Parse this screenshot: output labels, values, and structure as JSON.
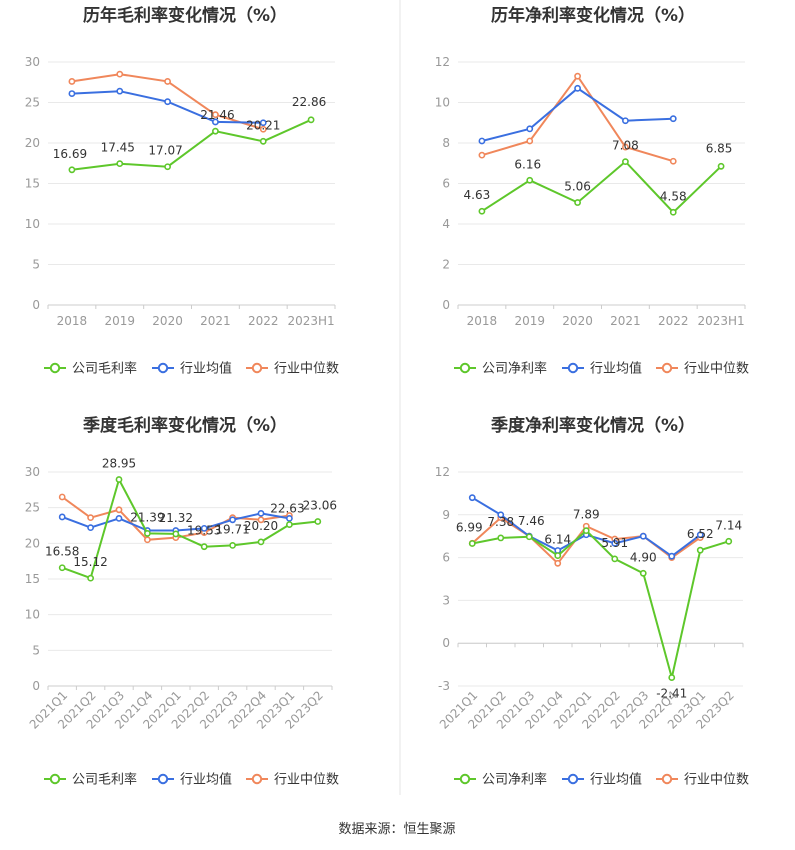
{
  "source": "数据来源：恒生聚源",
  "legend_common": {
    "industry_avg": "行业均值",
    "industry_median": "行业中位数"
  },
  "colors": {
    "company": "#5ec72b",
    "avg": "#3a6fe0",
    "median": "#f0875b"
  },
  "chart_data": [
    {
      "type": "line",
      "title": "历年毛利率变化情况（%）",
      "categories": [
        "2018",
        "2019",
        "2020",
        "2021",
        "2022",
        "2023H1"
      ],
      "ylim": [
        0,
        30
      ],
      "yticks": [
        0,
        5,
        10,
        15,
        20,
        25,
        30
      ],
      "series": [
        {
          "name": "公司毛利率",
          "key": "company",
          "values": [
            16.69,
            17.45,
            17.07,
            21.46,
            20.21,
            22.86
          ]
        },
        {
          "name": "行业均值",
          "key": "avg",
          "values": [
            26.1,
            26.4,
            25.1,
            22.6,
            22.5,
            null
          ]
        },
        {
          "name": "行业中位数",
          "key": "median",
          "values": [
            27.6,
            28.5,
            27.6,
            23.5,
            21.7,
            null
          ]
        }
      ],
      "labels": [
        "16.69",
        "17.45",
        "17.07",
        "21.46",
        "20.21",
        "22.86"
      ]
    },
    {
      "type": "line",
      "title": "历年净利率变化情况（%）",
      "categories": [
        "2018",
        "2019",
        "2020",
        "2021",
        "2022",
        "2023H1"
      ],
      "ylim": [
        0,
        12
      ],
      "yticks": [
        0,
        2,
        4,
        6,
        8,
        10,
        12
      ],
      "series": [
        {
          "name": "公司净利率",
          "key": "company",
          "values": [
            4.63,
            6.16,
            5.06,
            7.08,
            4.58,
            6.85
          ]
        },
        {
          "name": "行业均值",
          "key": "avg",
          "values": [
            8.1,
            8.7,
            10.7,
            9.1,
            9.2,
            null
          ]
        },
        {
          "name": "行业中位数",
          "key": "median",
          "values": [
            7.4,
            8.1,
            11.3,
            7.8,
            7.1,
            null
          ]
        }
      ],
      "labels": [
        "4.63",
        "6.16",
        "5.06",
        "7.08",
        "4.58",
        "6.85"
      ]
    },
    {
      "type": "line",
      "title": "季度毛利率变化情况（%）",
      "categories": [
        "2021Q1",
        "2021Q2",
        "2021Q3",
        "2021Q4",
        "2022Q1",
        "2022Q2",
        "2022Q3",
        "2022Q4",
        "2023Q1",
        "2023Q2"
      ],
      "ylim": [
        0,
        30
      ],
      "yticks": [
        0,
        5,
        10,
        15,
        20,
        25,
        30
      ],
      "rotate_ticks": true,
      "series": [
        {
          "name": "公司毛利率",
          "key": "company",
          "values": [
            16.58,
            15.12,
            28.95,
            21.39,
            21.32,
            19.53,
            19.71,
            20.2,
            22.63,
            23.06
          ]
        },
        {
          "name": "行业均值",
          "key": "avg",
          "values": [
            23.7,
            22.2,
            23.5,
            21.8,
            21.8,
            22.1,
            23.3,
            24.2,
            23.5,
            null
          ]
        },
        {
          "name": "行业中位数",
          "key": "median",
          "values": [
            26.5,
            23.6,
            24.7,
            20.5,
            20.8,
            21.5,
            23.6,
            23.3,
            23.9,
            null
          ]
        }
      ],
      "labels": [
        "16.58",
        "15.12",
        "28.95",
        "21.39",
        "21.32",
        "19.53",
        "19.71",
        "20.20",
        "22.63",
        "23.06"
      ]
    },
    {
      "type": "line",
      "title": "季度净利率变化情况（%）",
      "categories": [
        "2021Q1",
        "2021Q2",
        "2021Q3",
        "2021Q4",
        "2022Q1",
        "2022Q2",
        "2022Q3",
        "2022Q4",
        "2023Q1",
        "2023Q2"
      ],
      "ylim": [
        -3,
        12
      ],
      "yticks": [
        -3,
        0,
        3,
        6,
        9,
        12
      ],
      "rotate_ticks": true,
      "series": [
        {
          "name": "公司净利率",
          "key": "company",
          "values": [
            6.99,
            7.38,
            7.46,
            6.14,
            7.89,
            5.91,
            4.9,
            -2.41,
            6.52,
            7.14
          ]
        },
        {
          "name": "行业均值",
          "key": "avg",
          "values": [
            10.2,
            9.0,
            7.5,
            6.5,
            7.6,
            7.0,
            7.5,
            6.1,
            7.6,
            null
          ]
        },
        {
          "name": "行业中位数",
          "key": "median",
          "values": [
            7.0,
            8.8,
            7.5,
            5.6,
            8.2,
            7.3,
            7.5,
            6.0,
            7.4,
            null
          ]
        }
      ],
      "labels": [
        "6.99",
        "7.38",
        "7.46",
        "6.14",
        "7.89",
        "5.91",
        "4.90",
        "-2.41",
        "6.52",
        "7.14"
      ]
    }
  ]
}
